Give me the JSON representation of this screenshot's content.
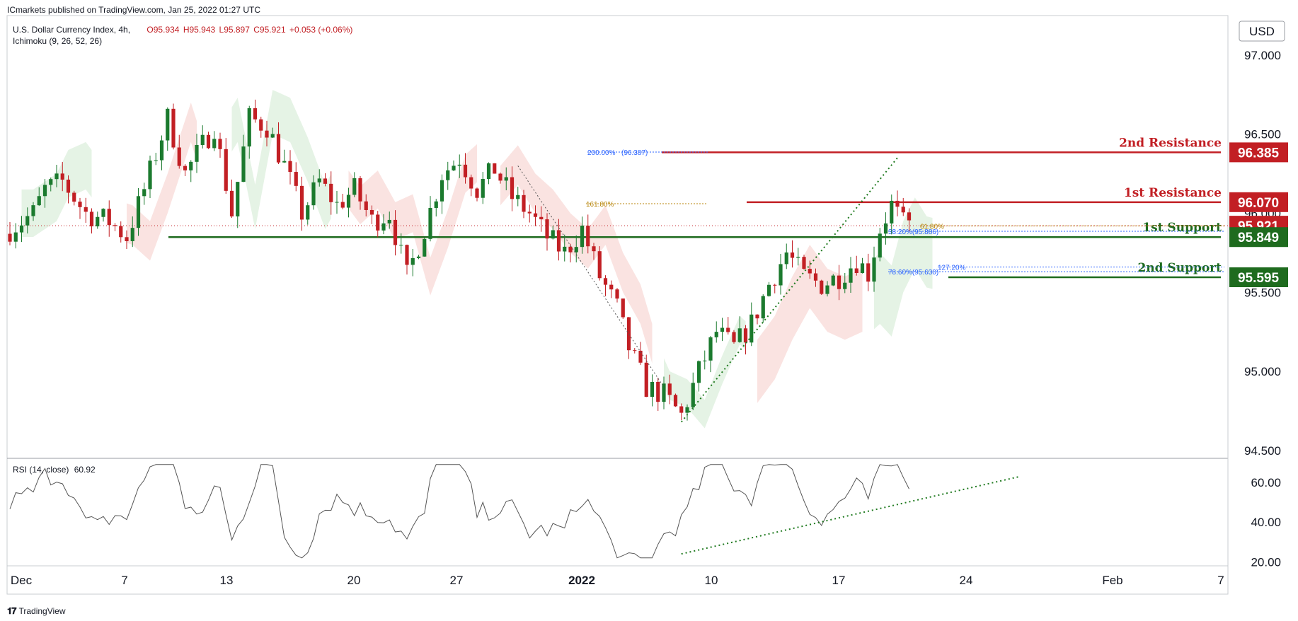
{
  "publisher_line": "ICmarkets published on TradingView.com, Jan 25, 2022 01:27 UTC",
  "symbol": {
    "name": "U.S. Dollar Currency Index, 4h,",
    "open": "O95.934",
    "high": "H95.943",
    "low": "L95.897",
    "close": "C95.921",
    "change": "+0.053 (+0.06%)",
    "indicator": "Ichimoku (9, 26, 52, 26)"
  },
  "rsi_label": "RSI (14, close)",
  "rsi_value": "60.92",
  "currency": "USD",
  "footer": "TradingView",
  "colors": {
    "bull": "#1b7a2e",
    "bear": "#c21f24",
    "resistance": "#c21f24",
    "support": "#1e6b1e",
    "cloud_red": "#f8d9d7",
    "cloud_green": "#dcefdc",
    "fib_blue": "#2962ff",
    "fib_gold": "#b8860b",
    "rsi_line": "#555555",
    "trend_dots": "#1f7a1f",
    "axis_text": "#131722"
  },
  "chart_data": [
    {
      "type": "candlestick",
      "title": "U.S. Dollar Currency Index, 4h",
      "x_ticks": [
        "Dec",
        "7",
        "13",
        "20",
        "27",
        "2022",
        "10",
        "17",
        "24",
        "Feb",
        "7"
      ],
      "y_ticks": [
        "97.000",
        "96.500",
        "96.000",
        "95.500",
        "95.000",
        "94.500"
      ],
      "ylim": [
        94.45,
        97.25
      ],
      "close_path": [
        [
          0,
          95.9
        ],
        [
          4,
          96.0
        ],
        [
          6,
          96.15
        ],
        [
          9,
          96.2
        ],
        [
          13,
          96.0
        ],
        [
          17,
          95.95
        ],
        [
          20,
          95.85
        ],
        [
          23,
          96.15
        ],
        [
          27,
          96.6
        ],
        [
          30,
          96.25
        ],
        [
          35,
          96.55
        ],
        [
          38,
          96.0
        ],
        [
          41,
          96.6
        ],
        [
          44,
          96.55
        ],
        [
          47,
          96.3
        ],
        [
          50,
          96.0
        ],
        [
          53,
          96.2
        ],
        [
          56,
          96.05
        ],
        [
          59,
          96.15
        ],
        [
          62,
          95.95
        ],
        [
          65,
          96.0
        ],
        [
          68,
          95.6
        ],
        [
          71,
          95.9
        ],
        [
          74,
          96.25
        ],
        [
          77,
          96.35
        ],
        [
          80,
          96.15
        ],
        [
          83,
          96.28
        ],
        [
          86,
          96.1
        ],
        [
          89,
          96.0
        ],
        [
          92,
          95.85
        ],
        [
          95,
          95.75
        ],
        [
          98,
          95.9
        ],
        [
          101,
          95.6
        ],
        [
          104,
          95.4
        ],
        [
          106,
          95.15
        ],
        [
          109,
          94.9
        ],
        [
          112,
          94.85
        ],
        [
          115,
          94.72
        ],
        [
          118,
          95.0
        ],
        [
          121,
          95.25
        ],
        [
          124,
          95.15
        ],
        [
          127,
          95.3
        ],
        [
          130,
          95.55
        ],
        [
          133,
          95.75
        ],
        [
          136,
          95.6
        ],
        [
          139,
          95.55
        ],
        [
          142,
          95.6
        ],
        [
          145,
          95.7
        ],
        [
          147,
          95.62
        ],
        [
          149,
          95.9
        ],
        [
          151,
          96.05
        ],
        [
          153,
          95.93
        ],
        [
          154,
          95.921
        ]
      ],
      "last_index": 154
    },
    {
      "type": "line",
      "title": "RSI (14, close)",
      "y_ticks": [
        "60.00",
        "40.00",
        "20.00"
      ],
      "ylim": [
        18,
        70
      ],
      "last_value": 60.92
    }
  ],
  "levels": [
    {
      "label": "2nd Resistance",
      "value": "96.385",
      "price": 96.385,
      "kind": "resistance"
    },
    {
      "label": "1st Resistance",
      "value": "96.070",
      "price": 96.07,
      "kind": "resistance"
    },
    {
      "label": "1st Support",
      "value": "95.849",
      "price": 95.849,
      "kind": "support"
    },
    {
      "label": "2nd Support",
      "value": "95.595",
      "price": 95.595,
      "kind": "support"
    }
  ],
  "current_price": {
    "value": "95.921",
    "price": 95.921
  },
  "fib_labels": [
    {
      "text": "200.00%",
      "price": 96.387
    },
    {
      "text": "(96.387)",
      "price": 96.387
    },
    {
      "text": "161.80%",
      "price": 96.06
    },
    {
      "text": "38.20%(95.886)",
      "price": 95.886
    },
    {
      "text": "61.80%",
      "price": 95.92
    },
    {
      "text": "127.20%",
      "price": 95.66
    },
    {
      "text": "78.60%(95.630)",
      "price": 95.63
    }
  ]
}
